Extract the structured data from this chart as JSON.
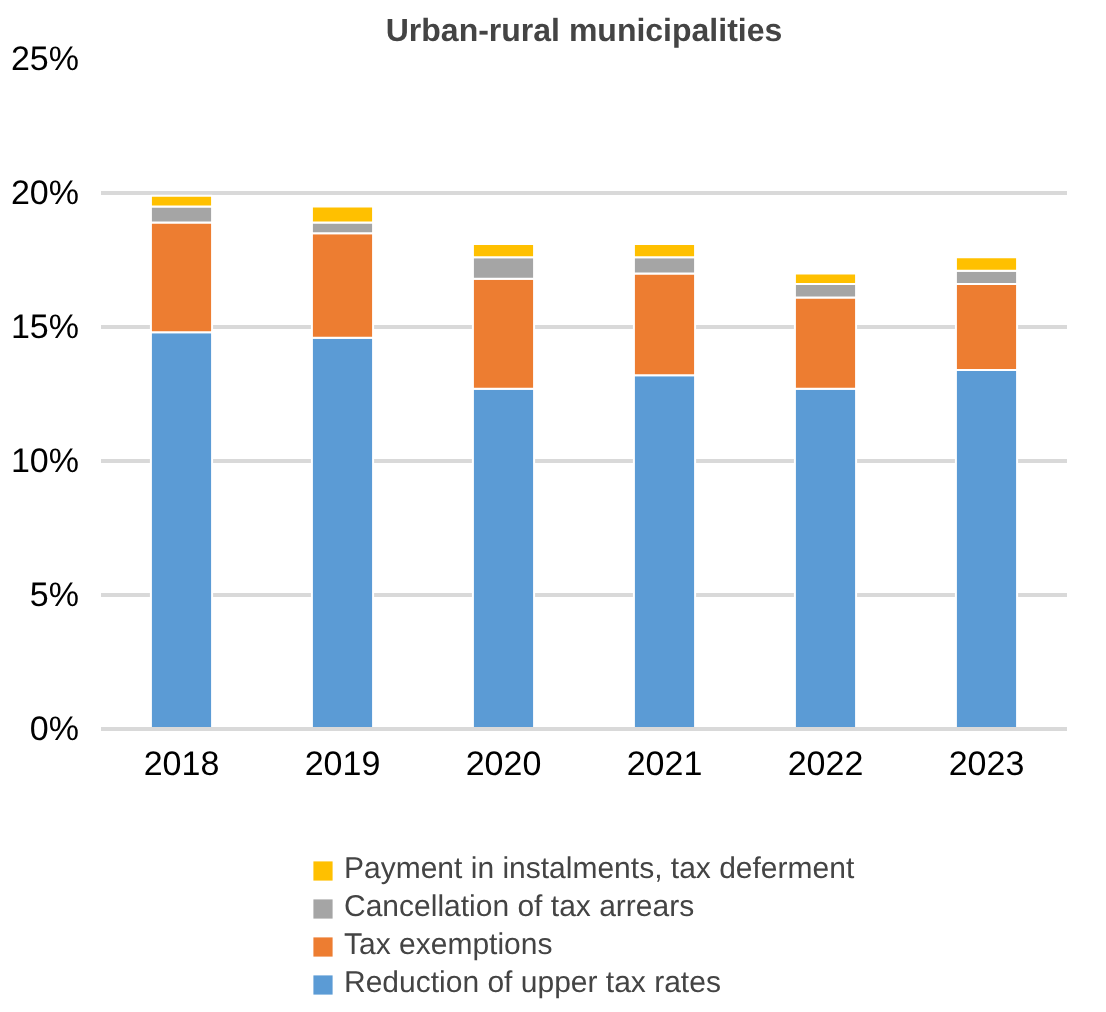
{
  "chart_data": {
    "type": "bar",
    "title": "Urban-rural municipalities",
    "stacked": true,
    "categories": [
      "2018",
      "2019",
      "2020",
      "2021",
      "2022",
      "2023"
    ],
    "series": [
      {
        "name": "Reduction of upper tax rates",
        "color": "#5b9bd5",
        "values": [
          14.8,
          14.6,
          12.7,
          13.2,
          12.7,
          13.4
        ]
      },
      {
        "name": "Tax exemptions",
        "color": "#ed7d31",
        "values": [
          4.1,
          3.9,
          4.1,
          3.8,
          3.4,
          3.2
        ]
      },
      {
        "name": "Cancellation of tax arrears",
        "color": "#a5a5a5",
        "values": [
          0.6,
          0.4,
          0.8,
          0.6,
          0.5,
          0.5
        ]
      },
      {
        "name": "Payment in instalments, tax deferment",
        "color": "#ffc000",
        "values": [
          0.4,
          0.6,
          0.5,
          0.5,
          0.4,
          0.5
        ]
      }
    ],
    "ylim": [
      0,
      25
    ],
    "yticks": [
      {
        "value": 0,
        "label": "0%"
      },
      {
        "value": 5,
        "label": "5%"
      },
      {
        "value": 10,
        "label": "10%"
      },
      {
        "value": 15,
        "label": "15%"
      },
      {
        "value": 20,
        "label": "20%"
      },
      {
        "value": 25,
        "label": "25%"
      }
    ],
    "grid": "y",
    "legend": "bottom"
  }
}
